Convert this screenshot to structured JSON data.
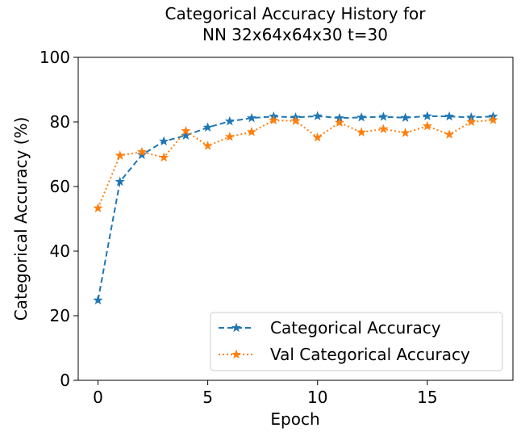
{
  "chart_data": {
    "type": "line",
    "title_lines": [
      "Categorical Accuracy History for",
      "NN 32x64x64x30 t=30"
    ],
    "xlabel": "Epoch",
    "ylabel": "Categorical Accuracy (%)",
    "xlim": [
      -0.9,
      18.9
    ],
    "ylim": [
      0,
      100
    ],
    "xticks": [
      0,
      5,
      10,
      15
    ],
    "yticks": [
      0,
      20,
      40,
      60,
      80,
      100
    ],
    "grid": false,
    "legend_position": "lower-right",
    "x": [
      0,
      1,
      2,
      3,
      4,
      5,
      6,
      7,
      8,
      9,
      10,
      11,
      12,
      13,
      14,
      15,
      16,
      17,
      18
    ],
    "series": [
      {
        "name": "Categorical Accuracy",
        "color": "#1f77b4",
        "linestyle": "dashed",
        "marker": "star",
        "values": [
          24.8,
          61.5,
          69.8,
          74.0,
          75.8,
          78.3,
          80.2,
          81.2,
          81.7,
          81.4,
          81.8,
          81.2,
          81.4,
          81.6,
          81.3,
          81.8,
          81.7,
          81.4,
          81.7
        ]
      },
      {
        "name": "Val Categorical Accuracy",
        "color": "#ff7f0e",
        "linestyle": "dotted",
        "marker": "star",
        "values": [
          53.3,
          69.6,
          70.7,
          69.0,
          77.2,
          72.6,
          75.4,
          76.9,
          80.5,
          80.3,
          75.2,
          79.8,
          76.8,
          77.8,
          76.6,
          78.7,
          76.1,
          80.0,
          80.6
        ]
      }
    ]
  }
}
